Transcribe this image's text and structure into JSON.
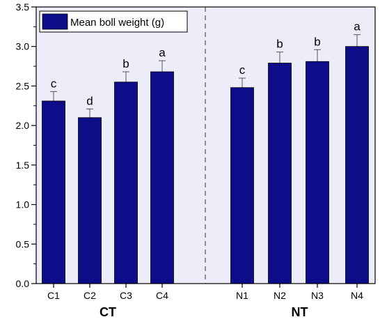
{
  "chart_data": {
    "type": "bar",
    "categories": [
      "C1",
      "C2",
      "C3",
      "C4",
      "N1",
      "N2",
      "N3",
      "N4"
    ],
    "groups": [
      {
        "label": "CT",
        "categories": [
          "C1",
          "C2",
          "C3",
          "C4"
        ]
      },
      {
        "label": "NT",
        "categories": [
          "N1",
          "N2",
          "N3",
          "N4"
        ]
      }
    ],
    "series": [
      {
        "name": "Mean boll weight (g)",
        "values": [
          2.31,
          2.1,
          2.55,
          2.68,
          2.48,
          2.79,
          2.81,
          3.0
        ],
        "errors": [
          0.12,
          0.11,
          0.13,
          0.14,
          0.12,
          0.14,
          0.15,
          0.15
        ],
        "letters": [
          "c",
          "d",
          "b",
          "a",
          "c",
          "b",
          "b",
          "a"
        ],
        "color": "#0d0d8a"
      }
    ],
    "ylim": [
      0,
      3.5
    ],
    "yticks": [
      "0.0",
      "0.5",
      "1.0",
      "1.5",
      "2.0",
      "2.5",
      "3.0",
      "3.5"
    ],
    "background_color": "#ededfa",
    "legend_position": "top-left",
    "divider": "dashed vertical line between CT and NT groups"
  }
}
